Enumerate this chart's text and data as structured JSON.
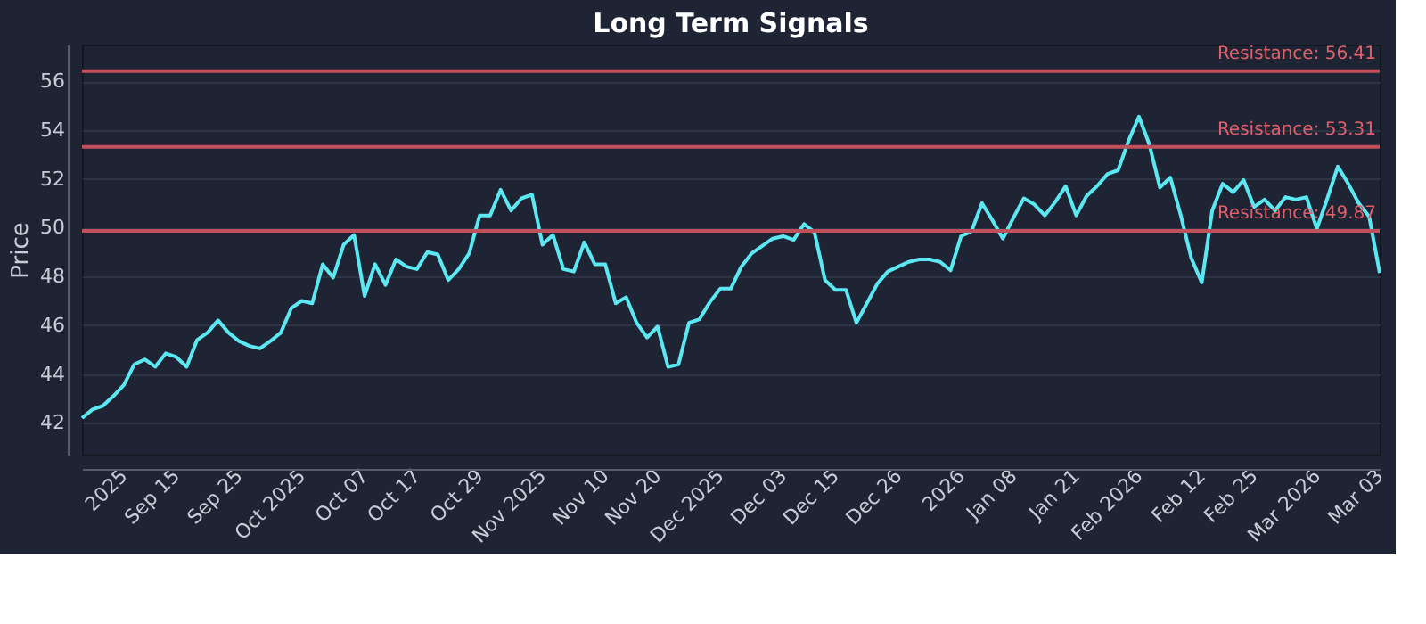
{
  "chart_data": {
    "type": "line",
    "title": "Long Term Signals",
    "ylabel": "Price",
    "categories": [
      null,
      null,
      null,
      null,
      "2025",
      null,
      null,
      null,
      null,
      "Sep 15",
      null,
      null,
      null,
      null,
      null,
      "Sep 25",
      null,
      null,
      null,
      null,
      null,
      "Oct 2025",
      null,
      null,
      null,
      null,
      null,
      "Oct 07",
      null,
      null,
      null,
      null,
      "Oct 17",
      null,
      null,
      null,
      null,
      null,
      "Oct 29",
      null,
      null,
      null,
      null,
      null,
      "Nov 2025",
      null,
      null,
      null,
      null,
      null,
      "Nov 10",
      null,
      null,
      null,
      null,
      "Nov 20",
      null,
      null,
      null,
      null,
      null,
      "Dec 2025",
      null,
      null,
      null,
      null,
      null,
      "Dec 03",
      null,
      null,
      null,
      null,
      "Dec 15",
      null,
      null,
      null,
      null,
      null,
      "Dec 26",
      null,
      null,
      null,
      null,
      null,
      "2026",
      null,
      null,
      null,
      null,
      "Jan 08",
      null,
      null,
      null,
      null,
      null,
      "Jan 21",
      null,
      null,
      null,
      null,
      null,
      "Feb 2026",
      null,
      null,
      null,
      null,
      null,
      "Feb 12",
      null,
      null,
      null,
      null,
      "Feb 25",
      null,
      null,
      null,
      null,
      null,
      "Mar 2026",
      null,
      null,
      null,
      null,
      null,
      "Mar 03"
    ],
    "series": [
      {
        "color": "#5ce8f2",
        "values": [
          42.2,
          42.55,
          42.7,
          43.1,
          43.55,
          44.4,
          44.6,
          44.3,
          44.85,
          44.7,
          44.3,
          45.4,
          45.7,
          46.2,
          45.7,
          45.35,
          45.15,
          45.05,
          45.35,
          45.7,
          46.7,
          47.0,
          46.9,
          48.5,
          47.95,
          49.3,
          49.7,
          47.2,
          48.5,
          47.65,
          48.7,
          48.4,
          48.3,
          49.0,
          48.9,
          47.85,
          48.3,
          48.95,
          50.5,
          50.5,
          51.55,
          50.7,
          51.2,
          51.35,
          49.3,
          49.7,
          48.3,
          48.2,
          49.4,
          48.5,
          48.5,
          46.9,
          47.15,
          46.1,
          45.5,
          45.95,
          44.3,
          44.4,
          46.1,
          46.25,
          46.95,
          47.5,
          47.5,
          48.4,
          48.95,
          49.25,
          49.55,
          49.65,
          49.5,
          50.15,
          49.8,
          47.85,
          47.45,
          47.45,
          46.1,
          46.9,
          47.7,
          48.2,
          48.4,
          48.6,
          48.7,
          48.7,
          48.6,
          48.25,
          49.65,
          49.85,
          51.0,
          50.3,
          49.55,
          50.4,
          51.2,
          50.95,
          50.5,
          51.05,
          51.7,
          50.5,
          51.3,
          51.7,
          52.2,
          52.35,
          53.55,
          54.55,
          53.4,
          51.65,
          52.05,
          50.5,
          48.75,
          47.75,
          50.7,
          51.8,
          51.45,
          51.95,
          50.85,
          51.15,
          50.7,
          51.25,
          51.15,
          51.25,
          49.95,
          51.2,
          52.5,
          51.8,
          51.0,
          50.45,
          48.15
        ]
      }
    ],
    "ylim": [
      40.7,
      57.5
    ],
    "yticks": [
      42,
      44,
      46,
      48,
      50,
      52,
      54,
      56
    ],
    "grid": "y",
    "ref_lines": [
      {
        "axis": "y",
        "value": 56.41,
        "label": "Resistance: 56.41",
        "color": "#c0505c"
      },
      {
        "axis": "y",
        "value": 53.31,
        "label": "Resistance: 53.31",
        "color": "#c0505c"
      },
      {
        "axis": "y",
        "value": 49.87,
        "label": "Resistance: 49.87",
        "color": "#c0505c"
      }
    ]
  }
}
